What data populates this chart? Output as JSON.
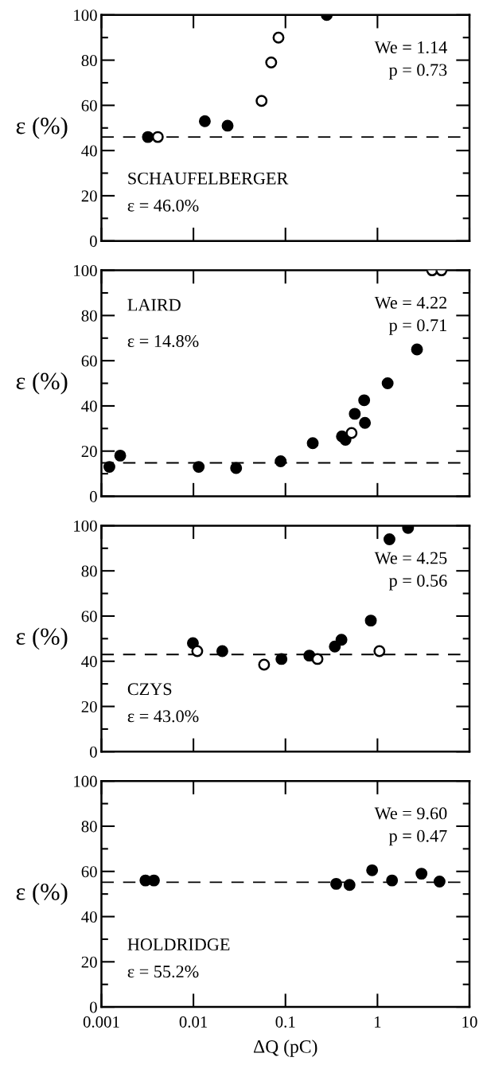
{
  "chart_data": [
    {
      "type": "scatter",
      "title": "SCHAUFELBERGER",
      "ylabel": "ε (%)",
      "log": "x",
      "xlim": [
        0.001,
        10
      ],
      "xticks": [
        {
          "value": 0.001,
          "label": null
        },
        {
          "value": 0.01,
          "label": null
        },
        {
          "value": 0.1,
          "label": null
        },
        {
          "value": 1,
          "label": null
        },
        {
          "value": 10,
          "label": null
        }
      ],
      "ylim": [
        0,
        100
      ],
      "yticks": [
        0,
        20,
        40,
        60,
        80,
        100
      ],
      "tick_labels": "y",
      "grid": false,
      "marker": "circle",
      "series": [
        {
          "color": "#000000",
          "x": [
            0.0032,
            0.0133,
            0.0235,
            0.281
          ],
          "values": [
            46,
            53,
            51,
            100
          ]
        },
        {
          "color": "#ffffff",
          "x": [
            0.0041,
            0.055,
            0.07,
            0.084
          ],
          "values": [
            46,
            62,
            79,
            90
          ]
        }
      ],
      "ref_lines": [
        {
          "axis": "y",
          "value": 46.0,
          "label": "ε = 46.0%",
          "color": "#000000",
          "line_style": "dashed"
        }
      ],
      "annotations": [
        "We = 1.14",
        "p = 0.73"
      ]
    },
    {
      "type": "scatter",
      "title": "LAIRD",
      "ylabel": "ε (%)",
      "log": "x",
      "xlim": [
        0.001,
        10
      ],
      "xticks": [
        {
          "value": 0.001,
          "label": null
        },
        {
          "value": 0.01,
          "label": null
        },
        {
          "value": 0.1,
          "label": null
        },
        {
          "value": 1,
          "label": null
        },
        {
          "value": 10,
          "label": null
        }
      ],
      "ylim": [
        0,
        100
      ],
      "yticks": [
        0,
        20,
        40,
        60,
        80,
        100
      ],
      "tick_labels": "y",
      "grid": false,
      "marker": "circle",
      "series": [
        {
          "color": "#000000",
          "x": [
            0.00122,
            0.0016,
            0.0114,
            0.0291,
            0.0887,
            0.198,
            0.411,
            0.449,
            0.567,
            0.717,
            0.731,
            1.29,
            2.69
          ],
          "values": [
            13,
            18,
            13,
            12.5,
            15.5,
            23.5,
            26.5,
            25,
            36.5,
            42.5,
            32.5,
            50,
            65
          ]
        },
        {
          "color": "#ffffff",
          "x": [
            0.523,
            3.93,
            4.96
          ],
          "values": [
            28,
            100,
            100
          ]
        }
      ],
      "ref_lines": [
        {
          "axis": "y",
          "value": 14.8,
          "label": "ε = 14.8%",
          "color": "#000000",
          "line_style": "dashed"
        }
      ],
      "annotations": [
        "We = 4.22",
        "p = 0.71"
      ]
    },
    {
      "type": "scatter",
      "title": "CZYS",
      "ylabel": "ε (%)",
      "log": "x",
      "xlim": [
        0.001,
        10
      ],
      "xticks": [
        {
          "value": 0.001,
          "label": null
        },
        {
          "value": 0.01,
          "label": null
        },
        {
          "value": 0.1,
          "label": null
        },
        {
          "value": 1,
          "label": null
        },
        {
          "value": 10,
          "label": null
        }
      ],
      "ylim": [
        0,
        100
      ],
      "yticks": [
        0,
        20,
        40,
        60,
        80,
        100
      ],
      "tick_labels": "y",
      "grid": false,
      "marker": "circle",
      "series": [
        {
          "color": "#000000",
          "x": [
            0.00987,
            0.0206,
            0.0905,
            0.182,
            0.344,
            0.406,
            0.847,
            1.35,
            2.15
          ],
          "values": [
            48,
            44.5,
            41,
            42.5,
            46.5,
            49.5,
            58,
            94,
            99
          ]
        },
        {
          "color": "#ffffff",
          "x": [
            0.011,
            0.0586,
            0.223,
            1.05
          ],
          "values": [
            44.5,
            38.5,
            41,
            44.5
          ]
        }
      ],
      "ref_lines": [
        {
          "axis": "y",
          "value": 43.0,
          "label": "ε = 43.0%",
          "color": "#000000",
          "line_style": "dashed"
        }
      ],
      "annotations": [
        "We = 4.25",
        "p = 0.56"
      ]
    },
    {
      "type": "scatter",
      "title": "HOLDRIDGE",
      "ylabel": "ε (%)",
      "xlabel": "ΔQ (pC)",
      "log": "x",
      "xlim": [
        0.001,
        10
      ],
      "xticks": [
        0.001,
        0.01,
        0.1,
        1,
        10
      ],
      "ylim": [
        0,
        100
      ],
      "yticks": [
        0,
        20,
        40,
        60,
        80,
        100
      ],
      "grid": false,
      "marker": "circle",
      "series": [
        {
          "color": "#000000",
          "x": [
            0.00301,
            0.00372,
            0.356,
            0.497,
            0.875,
            1.44,
            3.01,
            4.73
          ],
          "values": [
            56,
            56,
            54.5,
            54,
            60.5,
            56,
            59,
            55.5
          ]
        }
      ],
      "ref_lines": [
        {
          "axis": "y",
          "value": 55.2,
          "label": "ε = 55.2%",
          "color": "#000000",
          "line_style": "dashed"
        }
      ],
      "annotations": [
        "We = 9.60",
        "p = 0.47"
      ]
    }
  ]
}
